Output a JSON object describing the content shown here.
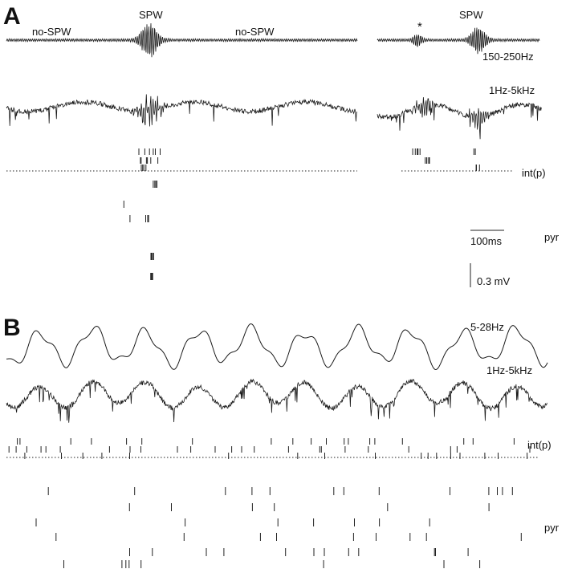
{
  "panels": {
    "a": "A",
    "b": "B"
  },
  "panel_a": {
    "labels": {
      "nospw_left": "no-SPW",
      "spw_main": "SPW",
      "nospw_right": "no-SPW",
      "star": "*",
      "spw_right": "SPW",
      "band_filtered": "150-250Hz",
      "band_wide": "1Hz-5kHz",
      "int": "int(p)",
      "pyr": "pyr"
    },
    "scalebars": {
      "time": "100ms",
      "voltage": "0.3 mV"
    }
  },
  "panel_b": {
    "labels": {
      "band_theta": "5-28Hz",
      "band_wide": "1Hz-5kHz",
      "int": "int(p)",
      "pyr": "pyr"
    }
  }
}
